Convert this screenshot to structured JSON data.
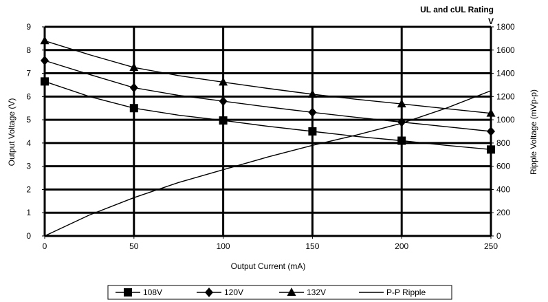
{
  "chart_data": {
    "type": "line",
    "title": "UL and cUL Rating",
    "xlabel": "Output Current (mA)",
    "ylabel": "Output Voltage (V)",
    "y2label": "Ripple Voltage (mVp-p)",
    "y2unit_note": "V",
    "xlim": [
      0,
      250
    ],
    "ylim": [
      0,
      9
    ],
    "y2lim": [
      0,
      1800
    ],
    "xticks": [
      "0",
      "50",
      "100",
      "150",
      "200",
      "250"
    ],
    "yticks": [
      "0",
      "1",
      "2",
      "3",
      "4",
      "5",
      "6",
      "7",
      "8",
      "9"
    ],
    "y2ticks": [
      "0",
      "200",
      "400",
      "600",
      "800",
      "1000",
      "1200",
      "1400",
      "1600",
      "1800"
    ],
    "grid": true,
    "legend_position": "bottom",
    "series": [
      {
        "name": "108V",
        "marker": "square",
        "axis": "left",
        "marker_x": [
          0,
          50,
          100,
          150,
          200,
          250
        ],
        "marker_y": [
          6.65,
          5.5,
          4.97,
          4.5,
          4.1,
          3.72
        ],
        "x": [
          0,
          25,
          50,
          75,
          100,
          125,
          150,
          175,
          200,
          225,
          250
        ],
        "y": [
          6.65,
          6.0,
          5.5,
          5.2,
          4.97,
          4.72,
          4.5,
          4.28,
          4.1,
          3.9,
          3.72
        ]
      },
      {
        "name": "120V",
        "marker": "diamond",
        "axis": "left",
        "marker_x": [
          0,
          50,
          100,
          150,
          200,
          250
        ],
        "marker_y": [
          7.55,
          6.38,
          5.8,
          5.32,
          4.9,
          4.5
        ],
        "x": [
          0,
          25,
          50,
          75,
          100,
          125,
          150,
          175,
          200,
          225,
          250
        ],
        "y": [
          7.55,
          6.95,
          6.38,
          6.05,
          5.8,
          5.55,
          5.32,
          5.1,
          4.9,
          4.7,
          4.5
        ]
      },
      {
        "name": "132V",
        "marker": "triangle",
        "axis": "left",
        "marker_x": [
          0,
          50,
          100,
          150,
          200,
          250
        ],
        "marker_y": [
          8.4,
          7.25,
          6.62,
          6.1,
          5.68,
          5.28
        ],
        "x": [
          0,
          25,
          50,
          75,
          100,
          125,
          150,
          175,
          200,
          225,
          250
        ],
        "y": [
          8.4,
          7.8,
          7.25,
          6.9,
          6.62,
          6.35,
          6.1,
          5.88,
          5.68,
          5.48,
          5.28
        ]
      },
      {
        "name": "P-P Ripple",
        "marker": "none",
        "axis": "right",
        "x": [
          0,
          25,
          50,
          75,
          100,
          125,
          150,
          175,
          200,
          225,
          250
        ],
        "y": [
          0,
          180,
          330,
          460,
          570,
          680,
          780,
          870,
          970,
          1100,
          1250
        ]
      }
    ]
  }
}
